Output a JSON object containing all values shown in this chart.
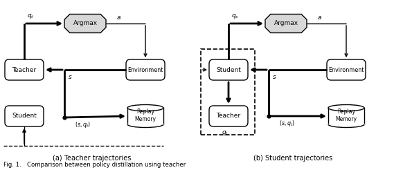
{
  "fig_width": 5.82,
  "fig_height": 2.46,
  "dpi": 100,
  "background_color": "#ffffff",
  "caption": "Fig. 1.   Comparison between policy distillation using teacher",
  "subtitle_a": "(a) Teacher trajectories",
  "subtitle_b": "(b) Student trajectories",
  "lw_thin": 1.0,
  "lw_thick": 2.0
}
